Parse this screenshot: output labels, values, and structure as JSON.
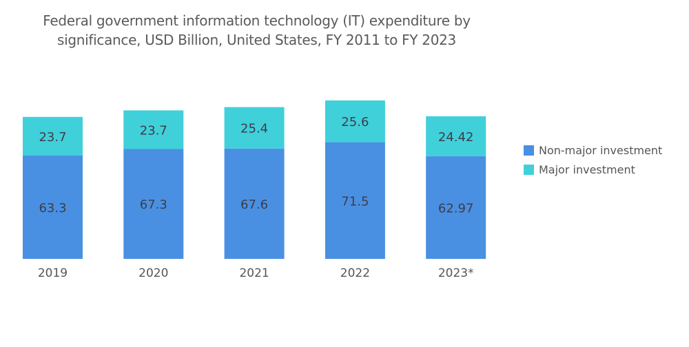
{
  "chart_data": {
    "type": "bar",
    "stacked": true,
    "title": "Federal government information technology (IT) expenditure by significance, USD Billion, United States, FY 2011 to FY 2023",
    "title_lines": [
      "Federal government information technology (IT) expenditure by",
      "significance, USD Billion, United States, FY 2011 to FY 2023"
    ],
    "xlabel": "",
    "ylabel": "",
    "categories": [
      "2019",
      "2020",
      "2021",
      "2022",
      "2023*"
    ],
    "series": [
      {
        "name": "Non-major investment",
        "color": "#4a90e2",
        "values": [
          63.3,
          67.3,
          67.6,
          71.5,
          62.97
        ],
        "labels": [
          "63.3",
          "67.3",
          "67.6",
          "71.5",
          "62.97"
        ]
      },
      {
        "name": "Major investment",
        "color": "#40d0da",
        "values": [
          23.7,
          23.7,
          25.4,
          25.6,
          24.42
        ],
        "labels": [
          "23.7",
          "23.7",
          "25.4",
          "25.6",
          "24.42"
        ]
      }
    ],
    "ylim": [
      0,
      100
    ],
    "grid": false,
    "legend_position": "right"
  }
}
